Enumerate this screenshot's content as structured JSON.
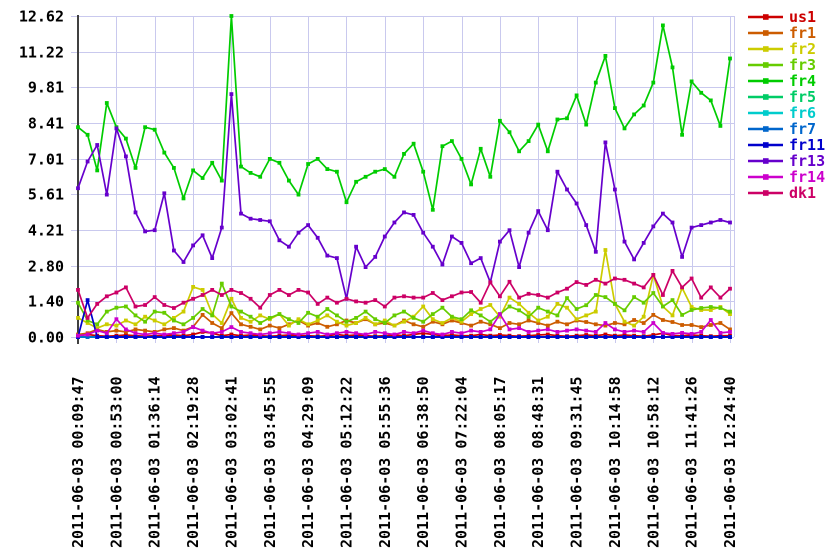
{
  "chart_data": {
    "type": "line",
    "title": "",
    "xlabel": "",
    "ylabel": "",
    "ylim": [
      0,
      12.62
    ],
    "grid": true,
    "legend_position": "right",
    "background_color": "#ffffff",
    "grid_color": "#c9c9ee",
    "axis_color": "#404040",
    "text_color": "#000000",
    "y_tick_labels": [
      "12.62",
      "11.22",
      "9.81",
      "8.41",
      "7.01",
      "5.61",
      "4.21",
      "2.80",
      "1.40",
      "0.00"
    ],
    "y_tick_values": [
      12.62,
      11.22,
      9.81,
      8.41,
      7.01,
      5.61,
      4.21,
      2.8,
      1.4,
      0.0
    ],
    "x_tick_labels": [
      "2011-06-03 00:09:47",
      "2011-06-03 00:53:00",
      "2011-06-03 01:36:14",
      "2011-06-03 02:19:28",
      "2011-06-03 03:02:41",
      "2011-06-03 03:45:55",
      "2011-06-03 04:29:09",
      "2011-06-03 05:12:22",
      "2011-06-03 05:55:36",
      "2011-06-03 06:38:50",
      "2011-06-03 07:22:04",
      "2011-06-03 08:05:17",
      "2011-06-03 08:48:31",
      "2011-06-03 09:31:45",
      "2011-06-03 10:14:58",
      "2011-06-03 10:58:12",
      "2011-06-03 11:41:26",
      "2011-06-03 12:24:40"
    ],
    "points_per_series": 69,
    "ticks_every_n_points": 4,
    "series": [
      {
        "name": "us1",
        "color": "#cc0000",
        "values": [
          0.05,
          0.1,
          0.05,
          0.03,
          0.05,
          0.08,
          0.05,
          0.03,
          0.05,
          0.05,
          0.08,
          0.05,
          0.1,
          0.2,
          0.15,
          0.05,
          0.1,
          0.05,
          0.08,
          0.05,
          0.03,
          0.05,
          0.08,
          0.05,
          0.05,
          0.03,
          0.05,
          0.1,
          0.05,
          0.08,
          0.05,
          0.03,
          0.05,
          0.08,
          0.05,
          0.1,
          0.15,
          0.1,
          0.05,
          0.08,
          0.05,
          0.05,
          0.1,
          0.05,
          0.08,
          0.05,
          0.03,
          0.05,
          0.08,
          0.1,
          0.05,
          0.03,
          0.05,
          0.08,
          0.05,
          0.1,
          0.05,
          0.08,
          0.05,
          0.03,
          0.08,
          0.15,
          0.05,
          0.05,
          0.08,
          0.05,
          0.03,
          0.05,
          0.05
        ]
      },
      {
        "name": "fr1",
        "color": "#cc5c00",
        "values": [
          0.1,
          0.15,
          0.3,
          0.2,
          0.25,
          0.2,
          0.3,
          0.25,
          0.2,
          0.3,
          0.35,
          0.25,
          0.4,
          0.87,
          0.55,
          0.35,
          0.94,
          0.5,
          0.4,
          0.3,
          0.45,
          0.35,
          0.5,
          0.65,
          0.45,
          0.55,
          0.4,
          0.5,
          0.65,
          0.55,
          0.7,
          0.5,
          0.55,
          0.45,
          0.65,
          0.5,
          0.4,
          0.6,
          0.5,
          0.65,
          0.55,
          0.45,
          0.6,
          0.5,
          0.35,
          0.55,
          0.5,
          0.65,
          0.55,
          0.45,
          0.6,
          0.5,
          0.65,
          0.59,
          0.5,
          0.45,
          0.55,
          0.5,
          0.67,
          0.55,
          0.87,
          0.67,
          0.59,
          0.47,
          0.47,
          0.39,
          0.47,
          0.55,
          0.3
        ]
      },
      {
        "name": "fr2",
        "color": "#cccc00",
        "values": [
          0.75,
          0.55,
          0.35,
          0.5,
          0.45,
          0.65,
          0.5,
          0.8,
          0.65,
          0.5,
          0.75,
          1.0,
          1.97,
          1.85,
          0.9,
          0.55,
          1.5,
          0.75,
          0.6,
          0.85,
          0.7,
          0.9,
          0.45,
          0.7,
          0.5,
          0.65,
          0.85,
          0.6,
          0.45,
          0.55,
          0.75,
          0.5,
          0.65,
          0.45,
          0.6,
          0.8,
          1.2,
          0.7,
          0.55,
          0.75,
          0.6,
          0.9,
          1.1,
          1.26,
          0.8,
          1.55,
          1.3,
          0.95,
          0.65,
          0.8,
          1.3,
          1.15,
          0.7,
          0.85,
          1.0,
          3.42,
          1.3,
          0.6,
          0.45,
          0.8,
          2.44,
          1.2,
          0.85,
          1.93,
          1.18,
          1.06,
          1.06,
          1.18,
          0.9
        ]
      },
      {
        "name": "fr3",
        "color": "#66cc00",
        "values": [
          1.35,
          0.65,
          0.5,
          1.0,
          1.15,
          1.2,
          0.85,
          0.6,
          1.0,
          0.95,
          0.65,
          0.5,
          0.75,
          1.1,
          0.85,
          2.1,
          1.2,
          1.0,
          0.8,
          0.55,
          0.75,
          0.9,
          0.7,
          0.55,
          0.95,
          0.8,
          1.1,
          0.85,
          0.6,
          0.75,
          1.0,
          0.7,
          0.55,
          0.85,
          1.0,
          0.75,
          0.6,
          0.9,
          1.15,
          0.8,
          0.7,
          1.05,
          0.85,
          0.6,
          0.9,
          1.2,
          1.05,
          0.8,
          1.15,
          1.0,
          0.85,
          1.53,
          1.1,
          1.25,
          1.65,
          1.57,
          1.3,
          1.05,
          1.57,
          1.35,
          1.73,
          1.2,
          1.45,
          0.87,
          1.06,
          1.14,
          1.18,
          1.14,
          1.0
        ]
      },
      {
        "name": "fr4",
        "color": "#00cc00",
        "values": [
          8.25,
          7.95,
          6.55,
          9.2,
          8.25,
          7.8,
          6.65,
          8.25,
          8.15,
          7.25,
          6.65,
          5.45,
          6.55,
          6.25,
          6.85,
          6.15,
          12.62,
          6.7,
          6.45,
          6.3,
          7.0,
          6.85,
          6.15,
          5.6,
          6.8,
          7.0,
          6.6,
          6.5,
          5.3,
          6.1,
          6.3,
          6.5,
          6.6,
          6.3,
          7.2,
          7.6,
          6.5,
          5.0,
          7.5,
          7.7,
          7.0,
          6.0,
          7.4,
          6.3,
          8.5,
          8.05,
          7.3,
          7.7,
          8.35,
          7.3,
          8.55,
          8.6,
          9.5,
          8.35,
          10.0,
          11.05,
          9.0,
          8.2,
          8.75,
          9.1,
          10.0,
          12.25,
          10.6,
          7.95,
          10.05,
          9.6,
          9.3,
          8.3,
          10.95
        ]
      },
      {
        "name": "fr5",
        "color": "#00cc66",
        "values": [
          0,
          0,
          0,
          0,
          0,
          0,
          0,
          0,
          0,
          0,
          0,
          0,
          0,
          0,
          0,
          0,
          0,
          0,
          0,
          0,
          0,
          0,
          0,
          0,
          0,
          0,
          0,
          0,
          0,
          0,
          0,
          0,
          0,
          0,
          0,
          0,
          0,
          0,
          0,
          0,
          0,
          0,
          0,
          0,
          0,
          0,
          0,
          0,
          0,
          0,
          0,
          0,
          0,
          0,
          0,
          0,
          0,
          0,
          0,
          0,
          0,
          0,
          0,
          0,
          0,
          0,
          0,
          0,
          0
        ]
      },
      {
        "name": "fr6",
        "color": "#00cccc",
        "values": [
          0,
          0,
          0,
          0,
          0,
          0,
          0,
          0,
          0,
          0,
          0,
          0,
          0,
          0,
          0,
          0,
          0,
          0,
          0,
          0,
          0,
          0,
          0,
          0,
          0,
          0,
          0,
          0,
          0,
          0,
          0,
          0,
          0,
          0,
          0,
          0,
          0,
          0,
          0,
          0,
          0,
          0,
          0,
          0,
          0,
          0,
          0,
          0,
          0,
          0,
          0,
          0,
          0,
          0,
          0,
          0,
          0,
          0,
          0,
          0,
          0,
          0,
          0,
          0,
          0,
          0,
          0,
          0,
          0
        ]
      },
      {
        "name": "fr7",
        "color": "#0066cc",
        "values": [
          0,
          0,
          0,
          0,
          0,
          0,
          0,
          0,
          0,
          0,
          0,
          0,
          0,
          0,
          0,
          0,
          0,
          0,
          0,
          0,
          0,
          0,
          0,
          0,
          0,
          0,
          0,
          0,
          0,
          0,
          0,
          0,
          0,
          0,
          0,
          0,
          0,
          0,
          0,
          0,
          0,
          0,
          0,
          0,
          0,
          0,
          0,
          0,
          0,
          0,
          0,
          0,
          0,
          0,
          0,
          0,
          0,
          0,
          0,
          0,
          0,
          0,
          0,
          0,
          0,
          0,
          0,
          0,
          0
        ]
      },
      {
        "name": "fr11",
        "color": "#0000cc",
        "values": [
          0,
          1.45,
          0,
          0,
          0,
          0,
          0,
          0,
          0,
          0,
          0,
          0,
          0,
          0,
          0,
          0,
          0,
          0,
          0,
          0,
          0,
          0,
          0,
          0,
          0,
          0,
          0,
          0,
          0,
          0,
          0,
          0,
          0,
          0,
          0,
          0,
          0,
          0,
          0,
          0,
          0,
          0,
          0,
          0,
          0,
          0,
          0,
          0,
          0,
          0,
          0,
          0,
          0,
          0,
          0,
          0,
          0,
          0,
          0,
          0,
          0,
          0,
          0,
          0,
          0,
          0,
          0,
          0,
          0
        ]
      },
      {
        "name": "fr13",
        "color": "#6600cc",
        "values": [
          5.85,
          6.9,
          7.55,
          5.6,
          8.2,
          7.1,
          4.9,
          4.15,
          4.2,
          5.65,
          3.4,
          2.95,
          3.6,
          4.0,
          3.1,
          4.3,
          9.55,
          4.85,
          4.65,
          4.6,
          4.55,
          3.8,
          3.55,
          4.1,
          4.4,
          3.9,
          3.2,
          3.1,
          1.5,
          3.55,
          2.75,
          3.15,
          3.95,
          4.5,
          4.9,
          4.8,
          4.1,
          3.55,
          2.85,
          3.95,
          3.7,
          2.9,
          3.1,
          2.15,
          3.75,
          4.2,
          2.75,
          4.1,
          4.95,
          4.2,
          6.5,
          5.8,
          5.25,
          4.4,
          3.35,
          7.65,
          5.8,
          3.75,
          3.05,
          3.7,
          4.35,
          4.85,
          4.5,
          3.15,
          4.3,
          4.4,
          4.5,
          4.6,
          4.5
        ]
      },
      {
        "name": "fr14",
        "color": "#cc00cc",
        "values": [
          0.05,
          0.1,
          0.25,
          0.15,
          0.7,
          0.3,
          0.15,
          0.1,
          0.15,
          0.1,
          0.15,
          0.2,
          0.39,
          0.25,
          0.15,
          0.2,
          0.39,
          0.2,
          0.15,
          0.1,
          0.15,
          0.2,
          0.15,
          0.1,
          0.15,
          0.2,
          0.1,
          0.15,
          0.2,
          0.15,
          0.1,
          0.2,
          0.15,
          0.1,
          0.2,
          0.15,
          0.25,
          0.15,
          0.1,
          0.2,
          0.15,
          0.25,
          0.2,
          0.3,
          0.9,
          0.3,
          0.35,
          0.2,
          0.25,
          0.3,
          0.2,
          0.25,
          0.3,
          0.25,
          0.2,
          0.55,
          0.3,
          0.2,
          0.25,
          0.2,
          0.55,
          0.16,
          0.12,
          0.16,
          0.12,
          0.2,
          0.67,
          0.16,
          0.2
        ]
      },
      {
        "name": "dk1",
        "color": "#cc0066",
        "values": [
          1.85,
          0.75,
          1.3,
          1.6,
          1.75,
          1.95,
          1.2,
          1.26,
          1.57,
          1.26,
          1.14,
          1.35,
          1.5,
          1.65,
          1.85,
          1.65,
          1.85,
          1.73,
          1.5,
          1.15,
          1.65,
          1.85,
          1.65,
          1.85,
          1.75,
          1.3,
          1.55,
          1.35,
          1.5,
          1.4,
          1.35,
          1.45,
          1.2,
          1.55,
          1.6,
          1.55,
          1.55,
          1.73,
          1.45,
          1.6,
          1.75,
          1.77,
          1.35,
          2.15,
          1.6,
          2.17,
          1.55,
          1.7,
          1.65,
          1.55,
          1.75,
          1.9,
          2.16,
          2.05,
          2.25,
          2.1,
          2.3,
          2.25,
          2.1,
          1.95,
          2.44,
          1.65,
          2.6,
          1.95,
          2.3,
          1.55,
          1.95,
          1.55,
          1.9
        ]
      }
    ]
  }
}
